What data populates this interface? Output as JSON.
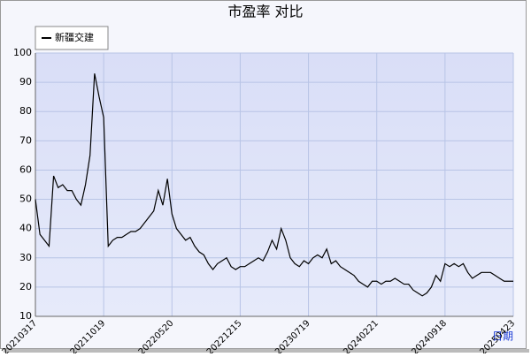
{
  "chart_data": {
    "type": "line",
    "title": "市盈率  对比",
    "x_label": "日期",
    "categories": [
      "20210317",
      null,
      null,
      null,
      null,
      null,
      null,
      null,
      null,
      null,
      null,
      null,
      null,
      null,
      null,
      "20211019",
      null,
      null,
      null,
      null,
      null,
      null,
      null,
      null,
      null,
      null,
      null,
      null,
      null,
      null,
      "20220520",
      null,
      null,
      null,
      null,
      null,
      null,
      null,
      null,
      null,
      null,
      null,
      null,
      null,
      null,
      "20221215",
      null,
      null,
      null,
      null,
      null,
      null,
      null,
      null,
      null,
      null,
      null,
      null,
      null,
      null,
      "20230719",
      null,
      null,
      null,
      null,
      null,
      null,
      null,
      null,
      null,
      null,
      null,
      null,
      null,
      null,
      "20240221",
      null,
      null,
      null,
      null,
      null,
      null,
      null,
      null,
      null,
      null,
      null,
      null,
      null,
      null,
      "20240918",
      null,
      null,
      null,
      null,
      null,
      null,
      null,
      null,
      null,
      null,
      null,
      null,
      null,
      null,
      "20250423"
    ],
    "series": [
      {
        "name": "新疆交建",
        "color": "#000000",
        "values": [
          50,
          38,
          36,
          34,
          58,
          54,
          55,
          53,
          53,
          50,
          48,
          55,
          65,
          93,
          85,
          78,
          34,
          36,
          37,
          37,
          38,
          39,
          39,
          40,
          42,
          44,
          46,
          53,
          48,
          57,
          45,
          40,
          38,
          36,
          37,
          34,
          32,
          31,
          28,
          26,
          28,
          29,
          30,
          27,
          26,
          27,
          27,
          28,
          29,
          30,
          29,
          32,
          36,
          33,
          40,
          36,
          30,
          28,
          27,
          29,
          28,
          30,
          31,
          30,
          33,
          28,
          29,
          27,
          26,
          25,
          24,
          22,
          21,
          20,
          22,
          22,
          21,
          22,
          22,
          23,
          22,
          21,
          21,
          19,
          18,
          17,
          18,
          20,
          24,
          22,
          28,
          27,
          28,
          27,
          28,
          25,
          23,
          24,
          25,
          25,
          25,
          24,
          23,
          22,
          22,
          22
        ]
      }
    ],
    "ylim": [
      10,
      100
    ],
    "yticks": [
      10,
      20,
      30,
      40,
      50,
      60,
      70,
      80,
      90,
      100
    ],
    "grid": true
  }
}
